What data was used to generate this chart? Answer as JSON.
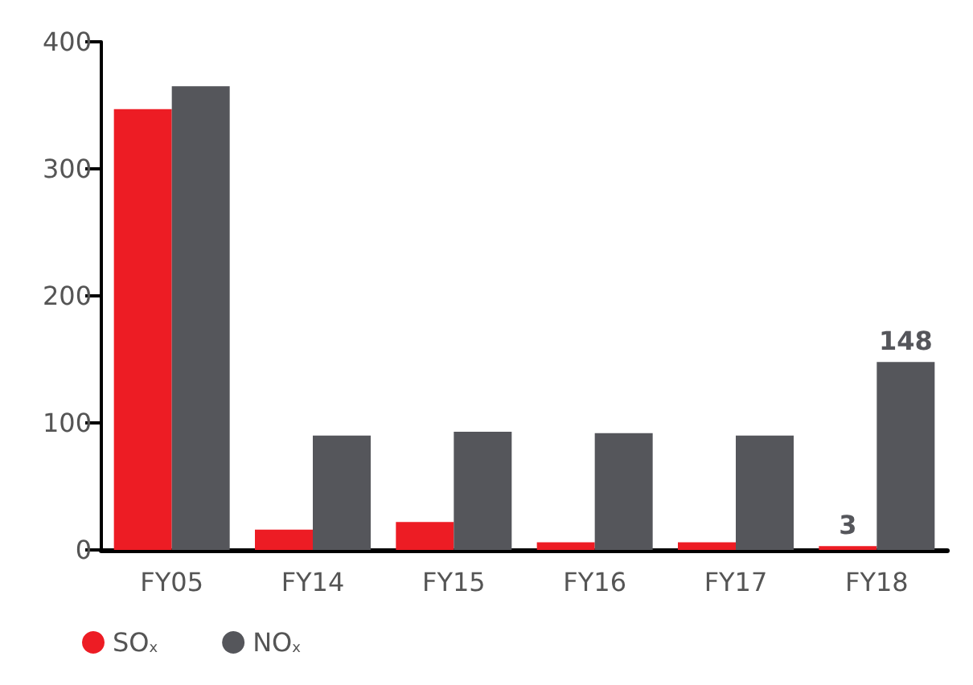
{
  "chart_data": {
    "type": "bar",
    "categories": [
      "FY05",
      "FY14",
      "FY15",
      "FY16",
      "FY17",
      "FY18"
    ],
    "series": [
      {
        "name": "SO$_{x}$",
        "color": "#ed1c24",
        "values": [
          347,
          16,
          22,
          6,
          6,
          3
        ],
        "value_labels": [
          null,
          null,
          null,
          null,
          null,
          "3"
        ]
      },
      {
        "name": "NO$_{x}$",
        "color": "#55565b",
        "values": [
          365,
          90,
          93,
          92,
          90,
          148
        ],
        "value_labels": [
          null,
          null,
          null,
          null,
          null,
          "148"
        ]
      }
    ],
    "ylim": [
      0,
      400
    ],
    "yticks": [
      0,
      100,
      200,
      300,
      400
    ],
    "grid": false,
    "legend": "bottom left"
  }
}
